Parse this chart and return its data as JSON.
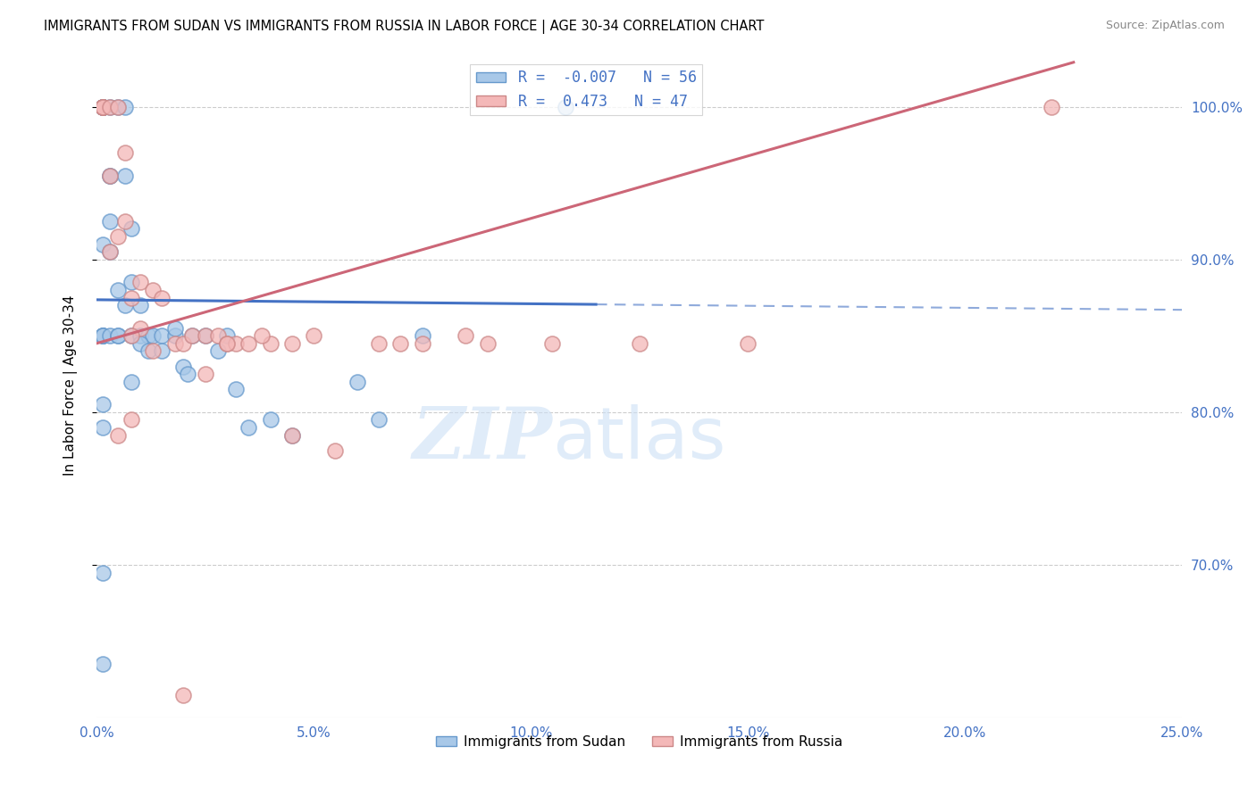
{
  "title": "IMMIGRANTS FROM SUDAN VS IMMIGRANTS FROM RUSSIA IN LABOR FORCE | AGE 30-34 CORRELATION CHART",
  "source": "Source: ZipAtlas.com",
  "xlabel_ticks": [
    "0.0%",
    "5.0%",
    "10.0%",
    "15.0%",
    "20.0%",
    "25.0%"
  ],
  "xlabel_vals": [
    0.0,
    5.0,
    10.0,
    15.0,
    20.0,
    25.0
  ],
  "ylabel_ticks": [
    "100.0%",
    "90.0%",
    "80.0%",
    "70.0%"
  ],
  "ylabel_vals": [
    100.0,
    90.0,
    80.0,
    70.0
  ],
  "ylabel_label": "In Labor Force | Age 30-34",
  "xlim": [
    0.0,
    25.0
  ],
  "ylim": [
    60.0,
    103.5
  ],
  "sudan_R": -0.007,
  "sudan_N": 56,
  "russia_R": 0.473,
  "russia_N": 47,
  "sudan_color": "#a8c8e8",
  "russia_color": "#f4b8b8",
  "sudan_edge_color": "#6699cc",
  "russia_edge_color": "#cc8888",
  "sudan_line_color": "#4472c4",
  "russia_line_color": "#cc6677",
  "legend_sudan_label": "Immigrants from Sudan",
  "legend_russia_label": "Immigrants from Russia",
  "sudan_x": [
    0.15,
    0.15,
    0.15,
    0.15,
    0.15,
    0.15,
    0.15,
    0.15,
    0.15,
    0.15,
    0.3,
    0.3,
    0.3,
    0.3,
    0.3,
    0.5,
    0.5,
    0.5,
    0.65,
    0.65,
    0.8,
    0.8,
    0.8,
    1.0,
    1.0,
    1.2,
    1.3,
    1.5,
    1.8,
    2.0,
    2.1,
    2.5,
    2.8,
    3.0,
    3.5,
    4.5,
    6.0,
    6.5,
    7.5,
    0.15,
    0.15,
    10.8,
    0.15,
    0.3,
    0.5,
    0.65,
    0.8,
    1.0,
    1.2,
    1.5,
    1.8,
    2.2,
    3.2,
    4.0,
    0.15,
    0.15
  ],
  "sudan_y": [
    100.0,
    100.0,
    100.0,
    100.0,
    100.0,
    100.0,
    85.0,
    85.0,
    85.0,
    85.0,
    100.0,
    95.5,
    95.5,
    92.5,
    85.0,
    100.0,
    85.0,
    85.0,
    100.0,
    95.5,
    92.0,
    88.5,
    85.0,
    87.0,
    85.0,
    85.0,
    85.0,
    85.0,
    85.0,
    83.0,
    82.5,
    85.0,
    84.0,
    85.0,
    79.0,
    78.5,
    82.0,
    79.5,
    85.0,
    79.0,
    80.5,
    100.0,
    91.0,
    90.5,
    88.0,
    87.0,
    82.0,
    84.5,
    84.0,
    84.0,
    85.5,
    85.0,
    81.5,
    79.5,
    69.5,
    63.5
  ],
  "russia_x": [
    0.15,
    0.15,
    0.15,
    0.15,
    0.15,
    0.3,
    0.3,
    0.5,
    0.5,
    0.65,
    0.65,
    0.8,
    1.0,
    1.0,
    1.3,
    1.5,
    1.8,
    2.0,
    2.2,
    2.5,
    2.5,
    2.8,
    3.0,
    3.2,
    3.5,
    4.0,
    4.5,
    5.0,
    6.5,
    7.5,
    8.5,
    2.0,
    0.8,
    0.5,
    3.0,
    3.8,
    4.5,
    5.5,
    7.0,
    9.0,
    10.5,
    12.5,
    15.0,
    22.0,
    0.3,
    0.8,
    1.3
  ],
  "russia_y": [
    100.0,
    100.0,
    100.0,
    100.0,
    100.0,
    100.0,
    95.5,
    100.0,
    91.5,
    97.0,
    92.5,
    87.5,
    88.5,
    85.5,
    88.0,
    87.5,
    84.5,
    84.5,
    85.0,
    85.0,
    82.5,
    85.0,
    84.5,
    84.5,
    84.5,
    84.5,
    84.5,
    85.0,
    84.5,
    84.5,
    85.0,
    61.5,
    79.5,
    78.5,
    84.5,
    85.0,
    78.5,
    77.5,
    84.5,
    84.5,
    84.5,
    84.5,
    84.5,
    100.0,
    90.5,
    85.0,
    84.0
  ]
}
